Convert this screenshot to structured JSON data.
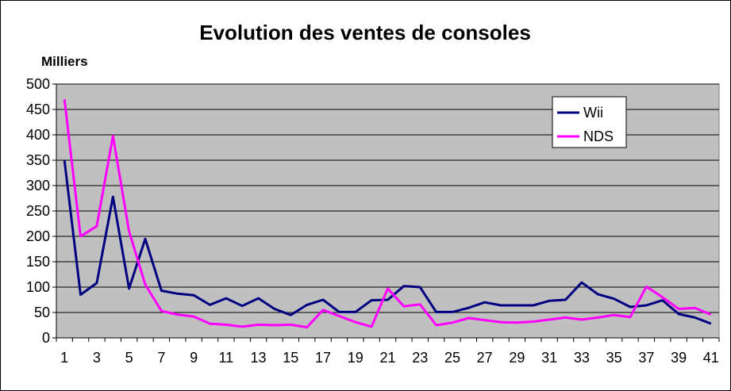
{
  "chart_data": {
    "type": "line",
    "title": "Evolution des ventes de consoles",
    "ylabel": "Milliers",
    "xlabel": "",
    "ylim": [
      0,
      500
    ],
    "yticks": [
      0,
      50,
      100,
      150,
      200,
      250,
      300,
      350,
      400,
      450,
      500
    ],
    "x": [
      1,
      2,
      3,
      4,
      5,
      6,
      7,
      8,
      9,
      10,
      11,
      12,
      13,
      14,
      15,
      16,
      17,
      18,
      19,
      20,
      21,
      22,
      23,
      24,
      25,
      26,
      27,
      28,
      29,
      30,
      31,
      32,
      33,
      34,
      35,
      36,
      37,
      38,
      39,
      40,
      41
    ],
    "xtick_labels": [
      1,
      3,
      5,
      7,
      9,
      11,
      13,
      15,
      17,
      19,
      21,
      23,
      25,
      27,
      29,
      31,
      33,
      35,
      37,
      39,
      41
    ],
    "grid": true,
    "legend_position": "top-right",
    "plot_background": "#c0c0c0",
    "series": [
      {
        "name": "Wii",
        "color": "#000080",
        "values": [
          350,
          85,
          108,
          278,
          97,
          195,
          93,
          87,
          84,
          65,
          78,
          63,
          78,
          57,
          45,
          65,
          75,
          51,
          51,
          74,
          75,
          102,
          100,
          51,
          51,
          59,
          70,
          64,
          64,
          64,
          73,
          75,
          109,
          86,
          77,
          61,
          64,
          74,
          47,
          40,
          28
        ]
      },
      {
        "name": "NDS",
        "color": "#ff00ff",
        "values": [
          470,
          200,
          220,
          398,
          210,
          105,
          53,
          46,
          42,
          28,
          26,
          22,
          26,
          25,
          26,
          21,
          55,
          43,
          31,
          22,
          97,
          62,
          66,
          25,
          30,
          39,
          35,
          31,
          30,
          32,
          36,
          40,
          36,
          40,
          45,
          41,
          101,
          80,
          57,
          59,
          46
        ]
      }
    ]
  }
}
